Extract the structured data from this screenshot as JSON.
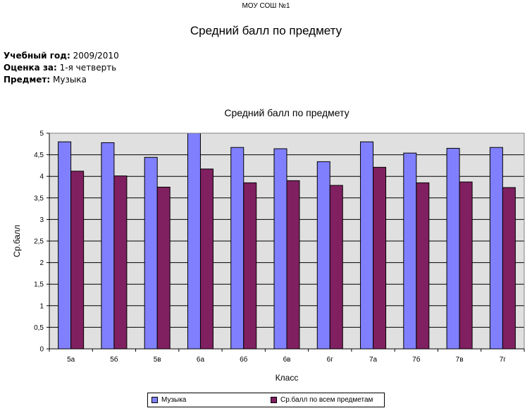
{
  "header": {
    "school": "МОУ СОШ №1",
    "title": "Средний балл по предмету"
  },
  "meta": {
    "year_label": "Учебный год:",
    "year_value": "2009/2010",
    "term_label": "Оценка за:",
    "term_value": "1-я четверть",
    "subject_label": "Предмет:",
    "subject_value": "Музыка"
  },
  "chart_data": {
    "type": "bar",
    "title": "Средний балл по предмету",
    "xlabel": "Класс",
    "ylabel": "Ср.балл",
    "categories": [
      "5а",
      "5б",
      "5в",
      "6а",
      "6б",
      "6в",
      "6г",
      "7а",
      "7б",
      "7в",
      "7г"
    ],
    "series": [
      {
        "name": "Музыка",
        "color": "#8080ff",
        "values": [
          4.8,
          4.78,
          4.44,
          5.0,
          4.67,
          4.64,
          4.34,
          4.8,
          4.54,
          4.65,
          4.67
        ]
      },
      {
        "name": "Ср.балл по всем предметам",
        "color": "#802060",
        "values": [
          4.12,
          4.01,
          3.75,
          4.17,
          3.85,
          3.9,
          3.79,
          4.21,
          3.85,
          3.87,
          3.74
        ]
      }
    ],
    "ylim": [
      0,
      5
    ],
    "yticks": [
      "0",
      "0,5",
      "1",
      "1,5",
      "2",
      "2,5",
      "3",
      "3,5",
      "4",
      "4,5",
      "5"
    ],
    "grid": true,
    "plot_background": "#e0e0e0",
    "legend_position": "bottom"
  }
}
